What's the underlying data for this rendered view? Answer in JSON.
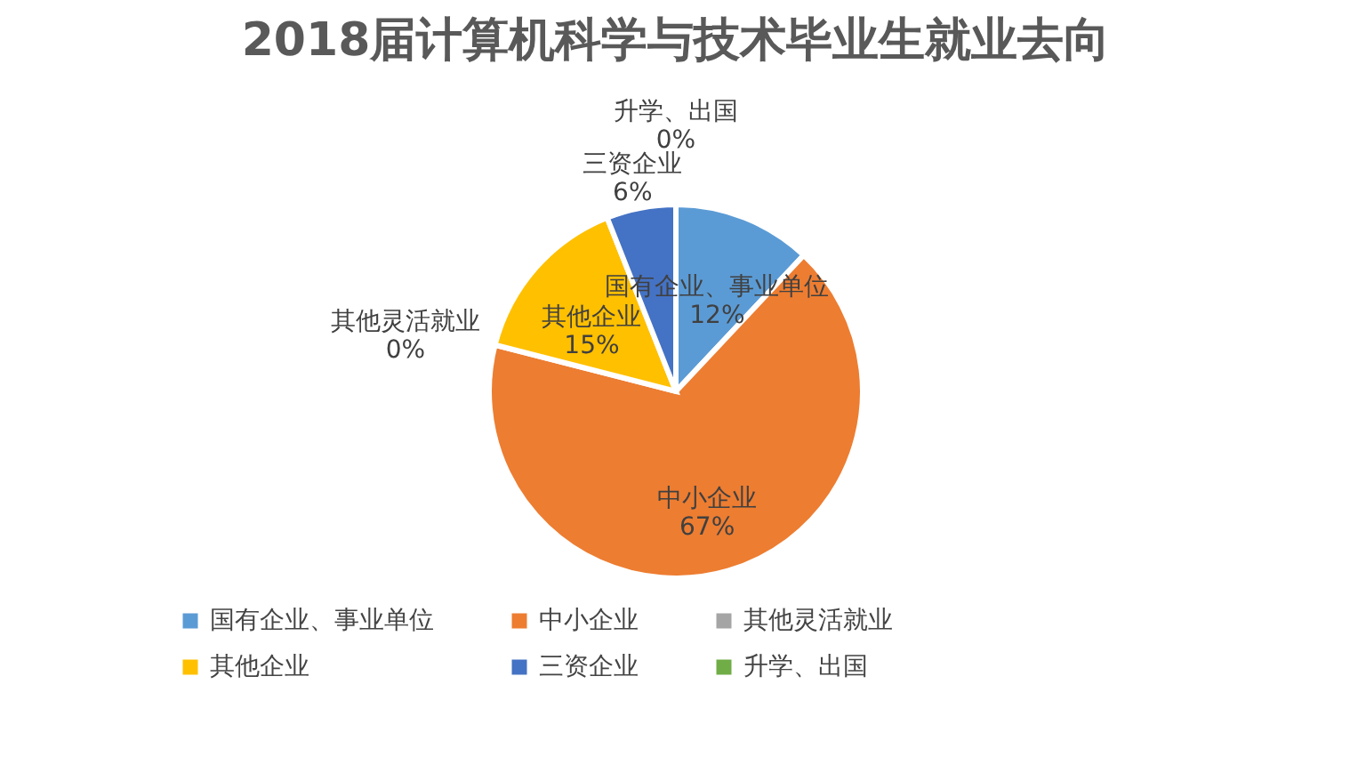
{
  "chart_data": {
    "type": "pie",
    "title": "2018届计算机科学与技术毕业生就业去向",
    "categories": [
      "国有企业、事业单位",
      "中小企业",
      "其他灵活就业",
      "其他企业",
      "三资企业",
      "升学、出国"
    ],
    "values": [
      12,
      67,
      0,
      15,
      6,
      0
    ],
    "value_labels": [
      "12%",
      "67%",
      "0%",
      "15%",
      "6%",
      "0%"
    ],
    "colors": [
      "#5b9bd5",
      "#ed7d31",
      "#a5a5a5",
      "#ffc000",
      "#4472c4",
      "#70ad47"
    ],
    "legend": "bottom"
  }
}
